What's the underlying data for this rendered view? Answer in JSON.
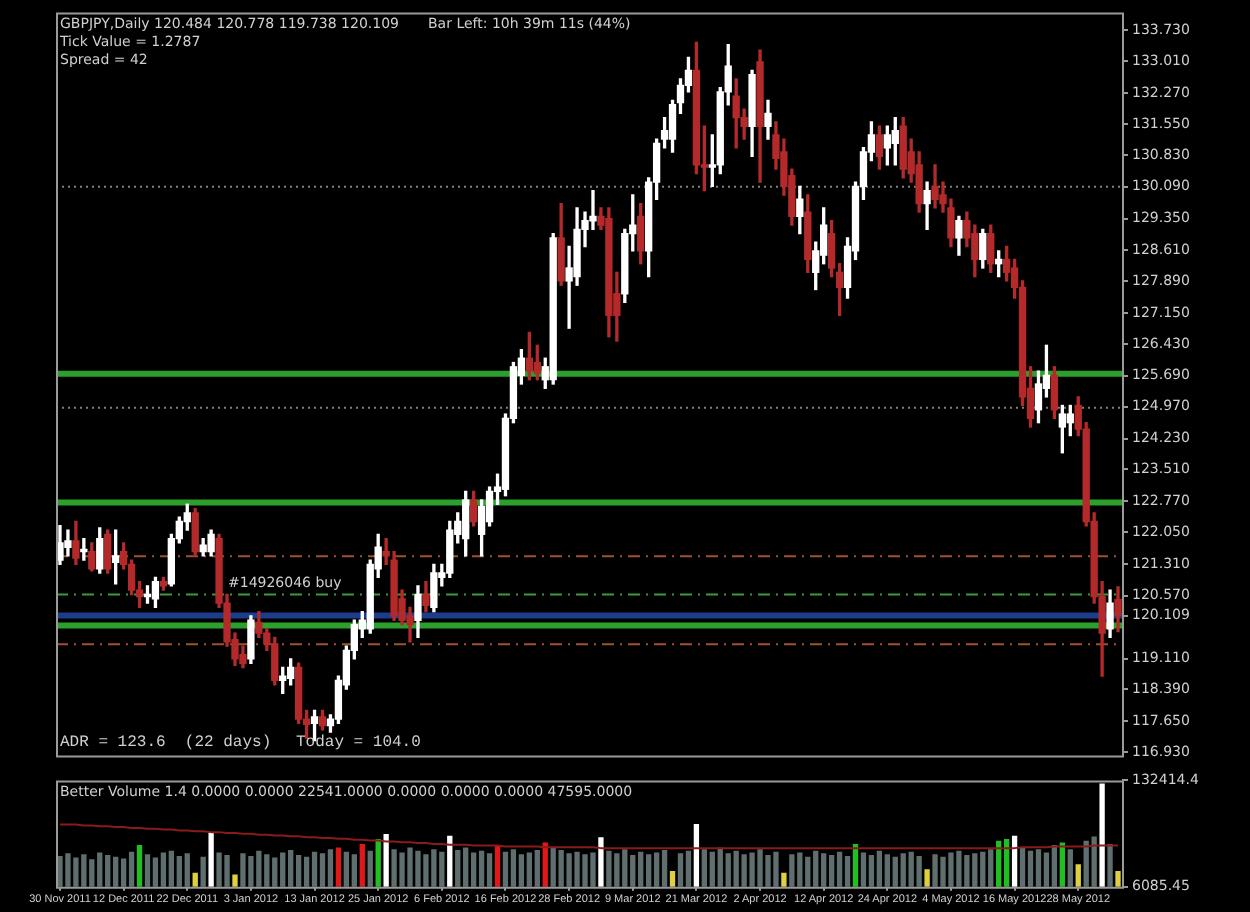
{
  "chart_data": [
    {
      "type": "candlestick",
      "tick_labels": "y",
      "categories": [
        null,
        null,
        null,
        null,
        null,
        null,
        null,
        null,
        null,
        null,
        null,
        null,
        null,
        null,
        null,
        null,
        null,
        null,
        null,
        null,
        null,
        null,
        null,
        null,
        null,
        null,
        null,
        null,
        null,
        null,
        null,
        null,
        null,
        null,
        null,
        null,
        null,
        null,
        null,
        null,
        null,
        null,
        null,
        null,
        null,
        null,
        null,
        null,
        null,
        null,
        null,
        null,
        null,
        null,
        null,
        null,
        null,
        null,
        null,
        null,
        null,
        null,
        null,
        null,
        null,
        null,
        null,
        null,
        null,
        null,
        null,
        null,
        null,
        null,
        null,
        null,
        null,
        null,
        null,
        null,
        null,
        null,
        null,
        null,
        null,
        null,
        null,
        null,
        null,
        null,
        null,
        null,
        null,
        null,
        null,
        null,
        null,
        null,
        null,
        null,
        null,
        null,
        null,
        null,
        null,
        null,
        null,
        null,
        null,
        null,
        null,
        null,
        null,
        null,
        null,
        null,
        null,
        null,
        null,
        null,
        null,
        null,
        null,
        null,
        null,
        null,
        null,
        null,
        null,
        null,
        null,
        null,
        null,
        null
      ],
      "ohlc": [
        [
          121.4,
          122.2,
          121.3,
          121.8
        ],
        [
          121.7,
          122.1,
          121.5,
          121.85
        ],
        [
          121.85,
          122.3,
          121.3,
          121.45
        ],
        [
          121.6,
          121.9,
          121.4,
          121.65
        ],
        [
          121.6,
          121.8,
          121.15,
          121.2
        ],
        [
          121.2,
          122.15,
          121.1,
          121.9
        ],
        [
          122.0,
          122.1,
          121.1,
          121.2
        ],
        [
          121.35,
          122.1,
          120.85,
          121.5
        ],
        [
          121.6,
          121.8,
          121.2,
          121.3
        ],
        [
          121.3,
          121.4,
          120.6,
          120.7
        ],
        [
          120.7,
          120.9,
          120.3,
          120.55
        ],
        [
          120.55,
          120.8,
          120.4,
          120.6
        ],
        [
          120.5,
          121.0,
          120.3,
          120.9
        ],
        [
          120.9,
          121.0,
          120.7,
          120.8
        ],
        [
          120.85,
          122.0,
          120.8,
          121.9
        ],
        [
          121.9,
          122.4,
          121.8,
          122.3
        ],
        [
          122.3,
          122.7,
          122.1,
          122.5
        ],
        [
          122.5,
          122.6,
          121.5,
          121.6
        ],
        [
          121.6,
          121.9,
          121.5,
          121.75
        ],
        [
          121.6,
          122.1,
          121.5,
          122.0
        ],
        [
          121.9,
          122.0,
          120.3,
          120.4
        ],
        [
          120.4,
          120.6,
          119.4,
          119.5
        ],
        [
          119.55,
          119.7,
          118.95,
          119.1
        ],
        [
          119.2,
          119.4,
          118.9,
          119.0
        ],
        [
          119.1,
          120.1,
          119.0,
          120.0
        ],
        [
          119.95,
          120.2,
          119.6,
          119.7
        ],
        [
          119.7,
          119.8,
          119.3,
          119.45
        ],
        [
          119.45,
          119.6,
          118.5,
          118.6
        ],
        [
          118.6,
          118.9,
          118.3,
          118.7
        ],
        [
          118.65,
          119.1,
          118.5,
          118.9
        ],
        [
          118.9,
          119.0,
          117.6,
          117.7
        ],
        [
          117.7,
          117.9,
          117.26,
          117.58
        ],
        [
          117.6,
          117.9,
          117.2,
          117.75
        ],
        [
          117.75,
          117.9,
          117.45,
          117.55
        ],
        [
          117.55,
          117.8,
          117.4,
          117.7
        ],
        [
          117.7,
          118.7,
          117.6,
          118.6
        ],
        [
          118.5,
          119.4,
          118.4,
          119.3
        ],
        [
          119.3,
          120.0,
          119.1,
          119.9
        ],
        [
          119.8,
          120.2,
          119.6,
          120.0
        ],
        [
          119.8,
          121.4,
          119.7,
          121.3
        ],
        [
          121.2,
          122.0,
          121.0,
          121.7
        ],
        [
          121.6,
          121.9,
          121.3,
          121.5
        ],
        [
          121.4,
          121.6,
          120.0,
          120.1
        ],
        [
          120.5,
          120.7,
          119.9,
          120.0
        ],
        [
          120.1,
          120.3,
          119.5,
          119.9
        ],
        [
          120.0,
          120.8,
          119.6,
          120.6
        ],
        [
          120.6,
          120.9,
          120.2,
          120.35
        ],
        [
          120.3,
          121.3,
          120.2,
          121.1
        ],
        [
          121.0,
          121.3,
          120.8,
          121.1
        ],
        [
          121.1,
          122.3,
          121.0,
          122.1
        ],
        [
          122.0,
          122.5,
          121.8,
          122.3
        ],
        [
          121.9,
          123.0,
          121.5,
          122.8
        ],
        [
          122.8,
          123.0,
          122.2,
          122.3
        ],
        [
          122.0,
          122.8,
          121.5,
          122.65
        ],
        [
          122.3,
          123.1,
          122.2,
          123.0
        ],
        [
          123.0,
          123.4,
          122.7,
          123.1
        ],
        [
          123.05,
          124.8,
          122.9,
          124.7
        ],
        [
          124.7,
          126.0,
          124.6,
          125.9
        ],
        [
          125.7,
          126.3,
          125.5,
          126.1
        ],
        [
          126.1,
          126.7,
          125.6,
          125.8
        ],
        [
          126.0,
          126.4,
          125.6,
          125.75
        ],
        [
          125.6,
          126.1,
          125.4,
          125.9
        ],
        [
          125.6,
          129.0,
          125.5,
          128.9
        ],
        [
          128.9,
          129.7,
          127.8,
          127.9
        ],
        [
          127.9,
          128.7,
          126.8,
          128.2
        ],
        [
          128.0,
          129.6,
          127.8,
          129.1
        ],
        [
          129.1,
          129.5,
          128.7,
          129.3
        ],
        [
          129.3,
          130.0,
          129.1,
          129.4
        ],
        [
          129.4,
          129.6,
          129.1,
          129.2
        ],
        [
          129.35,
          129.6,
          126.6,
          127.1
        ],
        [
          127.6,
          128.1,
          126.5,
          127.1
        ],
        [
          127.6,
          129.1,
          127.4,
          129.0
        ],
        [
          129.0,
          129.9,
          128.6,
          129.2
        ],
        [
          129.4,
          129.7,
          128.3,
          128.6
        ],
        [
          128.6,
          130.3,
          128.0,
          130.2
        ],
        [
          130.2,
          131.2,
          129.8,
          131.1
        ],
        [
          131.2,
          131.7,
          131.0,
          131.4
        ],
        [
          131.2,
          132.1,
          130.9,
          132.0
        ],
        [
          132.05,
          132.6,
          131.8,
          132.45
        ],
        [
          132.45,
          133.1,
          132.3,
          132.8
        ],
        [
          132.8,
          133.45,
          130.4,
          130.6
        ],
        [
          130.6,
          131.5,
          130.0,
          130.55
        ],
        [
          130.55,
          131.3,
          130.1,
          130.6
        ],
        [
          130.6,
          132.4,
          130.4,
          132.3
        ],
        [
          132.3,
          133.4,
          132.0,
          132.9
        ],
        [
          132.2,
          132.6,
          131.0,
          131.7
        ],
        [
          131.7,
          131.9,
          131.2,
          131.5
        ],
        [
          131.5,
          132.8,
          130.8,
          132.7
        ],
        [
          133.0,
          133.27,
          130.2,
          131.5
        ],
        [
          131.5,
          132.1,
          131.2,
          131.8
        ],
        [
          131.3,
          131.6,
          130.5,
          130.75
        ],
        [
          130.9,
          131.2,
          129.9,
          130.1
        ],
        [
          130.35,
          130.5,
          129.2,
          129.4
        ],
        [
          129.4,
          130.1,
          129.0,
          129.8
        ],
        [
          129.5,
          129.9,
          128.1,
          128.4
        ],
        [
          128.1,
          128.8,
          127.7,
          128.6
        ],
        [
          128.5,
          129.6,
          128.3,
          129.2
        ],
        [
          129.0,
          129.3,
          128.0,
          128.2
        ],
        [
          128.1,
          128.3,
          127.1,
          127.75
        ],
        [
          127.75,
          128.9,
          127.5,
          128.7
        ],
        [
          128.6,
          130.2,
          128.4,
          130.1
        ],
        [
          130.1,
          131.0,
          129.8,
          130.9
        ],
        [
          130.9,
          131.6,
          130.7,
          131.3
        ],
        [
          131.3,
          131.5,
          130.5,
          130.8
        ],
        [
          131.0,
          131.5,
          130.6,
          131.3
        ],
        [
          131.1,
          131.7,
          130.6,
          131.4
        ],
        [
          131.5,
          131.7,
          130.3,
          130.5
        ],
        [
          130.9,
          131.2,
          130.2,
          130.4
        ],
        [
          130.6,
          130.9,
          129.5,
          129.7
        ],
        [
          129.7,
          130.2,
          129.1,
          130.0
        ],
        [
          130.1,
          130.6,
          129.6,
          129.8
        ],
        [
          129.9,
          130.2,
          129.5,
          129.7
        ],
        [
          129.6,
          129.8,
          128.7,
          128.9
        ],
        [
          128.9,
          129.4,
          128.5,
          129.3
        ],
        [
          129.3,
          129.5,
          128.7,
          128.9
        ],
        [
          129.0,
          129.2,
          128.0,
          128.4
        ],
        [
          128.4,
          129.1,
          128.2,
          129.0
        ],
        [
          129.0,
          129.2,
          128.1,
          128.3
        ],
        [
          128.3,
          128.6,
          128.0,
          128.4
        ],
        [
          128.4,
          128.7,
          127.9,
          128.1
        ],
        [
          128.2,
          128.4,
          127.5,
          127.75
        ],
        [
          127.75,
          127.9,
          125.0,
          125.2
        ],
        [
          125.4,
          125.9,
          124.5,
          124.7
        ],
        [
          124.9,
          125.8,
          124.6,
          125.5
        ],
        [
          125.4,
          126.4,
          125.2,
          125.7
        ],
        [
          125.7,
          125.9,
          124.7,
          124.9
        ],
        [
          124.5,
          125.0,
          123.9,
          124.8
        ],
        [
          124.6,
          125.0,
          124.3,
          124.8
        ],
        [
          125.0,
          125.2,
          124.3,
          124.45
        ],
        [
          124.45,
          124.6,
          122.2,
          122.3
        ],
        [
          122.3,
          122.5,
          120.4,
          120.55
        ],
        [
          120.55,
          120.9,
          118.7,
          119.7
        ],
        [
          119.8,
          120.7,
          119.6,
          120.4
        ],
        [
          120.484,
          120.778,
          119.738,
          120.109
        ]
      ],
      "ylim": [
        116.85,
        134.15
      ],
      "yticks": [
        {
          "value": 133.73,
          "label": "133.730"
        },
        {
          "value": 133.01,
          "label": "133.010"
        },
        {
          "value": 132.27,
          "label": "132.270"
        },
        {
          "value": 131.55,
          "label": "131.550"
        },
        {
          "value": 130.83,
          "label": "130.830"
        },
        {
          "value": 130.09,
          "label": "130.090"
        },
        {
          "value": 129.35,
          "label": "129.350"
        },
        {
          "value": 128.61,
          "label": "128.610"
        },
        {
          "value": 127.89,
          "label": "127.890"
        },
        {
          "value": 127.15,
          "label": "127.150"
        },
        {
          "value": 126.43,
          "label": "126.430"
        },
        {
          "value": 125.69,
          "label": "125.690"
        },
        {
          "value": 124.97,
          "label": "124.970"
        },
        {
          "value": 124.23,
          "label": "124.230"
        },
        {
          "value": 123.51,
          "label": "123.510"
        },
        {
          "value": 122.77,
          "label": "122.770"
        },
        {
          "value": 122.05,
          "label": "122.050"
        },
        {
          "value": 121.31,
          "label": "121.310"
        },
        {
          "value": 120.57,
          "label": "120.570"
        },
        {
          "value": 120.109,
          "label": "120.109"
        },
        {
          "value": 119.11,
          "label": "119.110"
        },
        {
          "value": 118.39,
          "label": "118.390"
        },
        {
          "value": 117.65,
          "label": "117.650"
        },
        {
          "value": 116.93,
          "label": "116.930"
        }
      ],
      "ref_lines": [
        {
          "axis": "y",
          "value": 125.74,
          "color": "#2ca02c",
          "line_style": "solid"
        },
        {
          "axis": "y",
          "value": 122.74,
          "color": "#2ca02c",
          "line_style": "solid"
        },
        {
          "axis": "y",
          "value": 119.88,
          "color": "#2ca02c",
          "line_style": "solid"
        },
        {
          "axis": "y",
          "value": 130.09,
          "color": "#808080",
          "line_style": "dotted"
        },
        {
          "axis": "y",
          "value": 124.95,
          "color": "#808080",
          "line_style": "dotted"
        },
        {
          "axis": "y",
          "value": 121.49,
          "color": "#a0522d",
          "line_style": "dashed"
        },
        {
          "axis": "y",
          "value": 120.6,
          "color": "#3c9a3c",
          "line_style": "dashed",
          "label": "#14926046 buy"
        },
        {
          "axis": "y",
          "value": 120.109,
          "color": "#1c3c8c",
          "line_style": "solid"
        },
        {
          "axis": "y",
          "value": 119.44,
          "color": "#a0522d",
          "line_style": "dashed"
        }
      ],
      "annotations": [
        "GBPJPY,Daily 120.484 120.778 119.738 120.109",
        "Bar Left: 10h 39m 11s (44%)",
        "Tick Value = 1.2787",
        "Spread = 42",
        "ADR = 123.6  (22 days)",
        "Today = 104.0"
      ]
    },
    {
      "type": "bar",
      "categories": [
        "30 Nov 2011",
        null,
        null,
        null,
        null,
        null,
        null,
        null,
        "12 Dec 2011",
        null,
        null,
        null,
        null,
        null,
        null,
        null,
        "22 Dec 2011",
        null,
        null,
        null,
        null,
        null,
        null,
        null,
        "3 Jan 2012",
        null,
        null,
        null,
        null,
        null,
        null,
        null,
        "13 Jan 2012",
        null,
        null,
        null,
        null,
        null,
        null,
        null,
        "25 Jan 2012",
        null,
        null,
        null,
        null,
        null,
        null,
        null,
        "6 Feb 2012",
        null,
        null,
        null,
        null,
        null,
        null,
        null,
        "16 Feb 2012",
        null,
        null,
        null,
        null,
        null,
        null,
        null,
        "28 Feb 2012",
        null,
        null,
        null,
        null,
        null,
        null,
        null,
        "9 Mar 2012",
        null,
        null,
        null,
        null,
        null,
        null,
        null,
        "21 Mar 2012",
        null,
        null,
        null,
        null,
        null,
        null,
        null,
        "2 Apr 2012",
        null,
        null,
        null,
        null,
        null,
        null,
        null,
        "12 Apr 2012",
        null,
        null,
        null,
        null,
        null,
        null,
        null,
        "24 Apr 2012",
        null,
        null,
        null,
        null,
        null,
        null,
        null,
        "4 May 2012",
        null,
        null,
        null,
        null,
        null,
        null,
        null,
        "16 May 2012",
        null,
        null,
        null,
        null,
        null,
        null,
        null,
        "28 May 2012",
        null,
        null,
        null,
        null,
        null
      ],
      "ylim": [
        6085.45,
        132414.4
      ],
      "yticks": [
        {
          "value": 132414.4,
          "label": "132414.4"
        },
        {
          "value": 6085.45,
          "label": "6085.45"
        }
      ],
      "series": [
        {
          "type": "bar",
          "colors": [
            "#5f6f6f",
            "#5f6f6f",
            "#5f6f6f",
            "#5f6f6f",
            "#5f6f6f",
            "#5f6f6f",
            "#5f6f6f",
            "#5f6f6f",
            "#5f6f6f",
            "#5f6f6f",
            "#20c020",
            "#5f6f6f",
            "#5f6f6f",
            "#5f6f6f",
            "#5f6f6f",
            "#5f6f6f",
            "#5f6f6f",
            "#e0d040",
            "#5f6f6f",
            "#ffffff",
            "#5f6f6f",
            "#5f6f6f",
            "#e0d040",
            "#5f6f6f",
            "#5f6f6f",
            "#5f6f6f",
            "#5f6f6f",
            "#5f6f6f",
            "#5f6f6f",
            "#5f6f6f",
            "#5f6f6f",
            "#5f6f6f",
            "#5f6f6f",
            "#5f6f6f",
            "#5f6f6f",
            "#e01818",
            "#5f6f6f",
            "#5f6f6f",
            "#e01818",
            "#5f6f6f",
            "#20c020",
            "#ffffff",
            "#5f6f6f",
            "#5f6f6f",
            "#5f6f6f",
            "#5f6f6f",
            "#5f6f6f",
            "#5f6f6f",
            "#5f6f6f",
            "#ffffff",
            "#5f6f6f",
            "#5f6f6f",
            "#5f6f6f",
            "#5f6f6f",
            "#5f6f6f",
            "#e01818",
            "#5f6f6f",
            "#5f6f6f",
            "#5f6f6f",
            "#5f6f6f",
            "#5f6f6f",
            "#e01818",
            "#5f6f6f",
            "#5f6f6f",
            "#5f6f6f",
            "#5f6f6f",
            "#5f6f6f",
            "#5f6f6f",
            "#ffffff",
            "#5f6f6f",
            "#5f6f6f",
            "#5f6f6f",
            "#5f6f6f",
            "#5f6f6f",
            "#5f6f6f",
            "#5f6f6f",
            "#5f6f6f",
            "#e0d040",
            "#5f6f6f",
            "#5f6f6f",
            "#ffffff",
            "#5f6f6f",
            "#5f6f6f",
            "#5f6f6f",
            "#5f6f6f",
            "#5f6f6f",
            "#5f6f6f",
            "#5f6f6f",
            "#5f6f6f",
            "#5f6f6f",
            "#5f6f6f",
            "#e0d040",
            "#5f6f6f",
            "#5f6f6f",
            "#5f6f6f",
            "#5f6f6f",
            "#5f6f6f",
            "#5f6f6f",
            "#5f6f6f",
            "#5f6f6f",
            "#20c020",
            "#5f6f6f",
            "#5f6f6f",
            "#5f6f6f",
            "#5f6f6f",
            "#5f6f6f",
            "#5f6f6f",
            "#5f6f6f",
            "#5f6f6f",
            "#e0d040",
            "#5f6f6f",
            "#5f6f6f",
            "#5f6f6f",
            "#5f6f6f",
            "#5f6f6f",
            "#5f6f6f",
            "#5f6f6f",
            "#5f6f6f",
            "#20c020",
            "#20c020",
            "#ffffff",
            "#5f6f6f",
            "#5f6f6f",
            "#5f6f6f",
            "#5f6f6f",
            "#5f6f6f",
            "#20c020",
            "#5f6f6f",
            "#e0d040",
            "#5f6f6f",
            "#5f6f6f",
            "#ffffff",
            "#5f6f6f",
            "#e0d040"
          ],
          "values": [
            42000,
            45000,
            40000,
            44000,
            38000,
            46000,
            43000,
            41000,
            39000,
            47000,
            55000,
            44000,
            40000,
            46000,
            48000,
            42000,
            45000,
            22000,
            41000,
            70000,
            46000,
            43000,
            20000,
            45000,
            42000,
            48000,
            44000,
            40000,
            46000,
            49000,
            43000,
            41000,
            47000,
            45000,
            50000,
            52000,
            47000,
            44000,
            56000,
            48000,
            62000,
            68000,
            50000,
            46000,
            52000,
            48000,
            44000,
            50000,
            47000,
            66000,
            49000,
            52000,
            46000,
            48000,
            45000,
            54000,
            47000,
            50000,
            44000,
            46000,
            49000,
            58000,
            52000,
            49000,
            45000,
            47000,
            44000,
            46000,
            64000,
            48000,
            45000,
            50000,
            43000,
            47000,
            44000,
            46000,
            49000,
            24000,
            45000,
            48000,
            80000,
            50000,
            47000,
            52000,
            45000,
            48000,
            44000,
            46000,
            50000,
            43000,
            47000,
            22000,
            44000,
            46000,
            41000,
            48000,
            45000,
            43000,
            47000,
            42000,
            56000,
            46000,
            43000,
            48000,
            44000,
            41000,
            45000,
            47000,
            42000,
            26000,
            44000,
            41000,
            46000,
            48000,
            43000,
            45000,
            47000,
            50000,
            60000,
            62000,
            66000,
            52000,
            48000,
            50000,
            46000,
            55000,
            58000,
            50000,
            32000,
            60000,
            65000,
            128000,
            56000,
            24000
          ]
        },
        {
          "type": "line",
          "color": "#8b1a1a",
          "values": [
            80000,
            80000,
            80000,
            79000,
            79000,
            78000,
            78000,
            77000,
            77000,
            76000,
            76000,
            75000,
            75000,
            74000,
            74000,
            73000,
            73000,
            72000,
            72000,
            71000,
            71000,
            70000,
            70000,
            69000,
            69000,
            68000,
            68000,
            67000,
            67000,
            66000,
            66000,
            65000,
            65000,
            64000,
            64000,
            63000,
            63000,
            62000,
            62000,
            61000,
            61000,
            60000,
            60000,
            59000,
            59000,
            58000,
            58000,
            57000,
            57000,
            56000,
            56000,
            56000,
            55000,
            55000,
            55000,
            55000,
            54000,
            54000,
            54000,
            54000,
            54000,
            53000,
            53000,
            53000,
            53000,
            53000,
            53000,
            53000,
            52000,
            52000,
            52000,
            52000,
            52000,
            52000,
            52000,
            52000,
            52000,
            52000,
            52000,
            52000,
            52000,
            52000,
            52000,
            52000,
            52000,
            52000,
            52000,
            52000,
            52000,
            52000,
            52000,
            52000,
            52000,
            52000,
            52000,
            52000,
            52000,
            52000,
            52000,
            52000,
            52000,
            52000,
            52000,
            52000,
            52000,
            52000,
            52000,
            52000,
            52000,
            52000,
            52000,
            52000,
            52000,
            52000,
            52000,
            52000,
            52000,
            52000,
            52000,
            52000,
            52000,
            53000,
            53000,
            53000,
            53000,
            54000,
            54000,
            54000,
            54000,
            54000,
            55000,
            55000,
            55000,
            55000
          ]
        }
      ],
      "annotations": [
        "Better Volume 1.4 0.0000 0.0000 22541.0000 0.0000 0.0000 0.0000 47595.0000"
      ]
    }
  ]
}
